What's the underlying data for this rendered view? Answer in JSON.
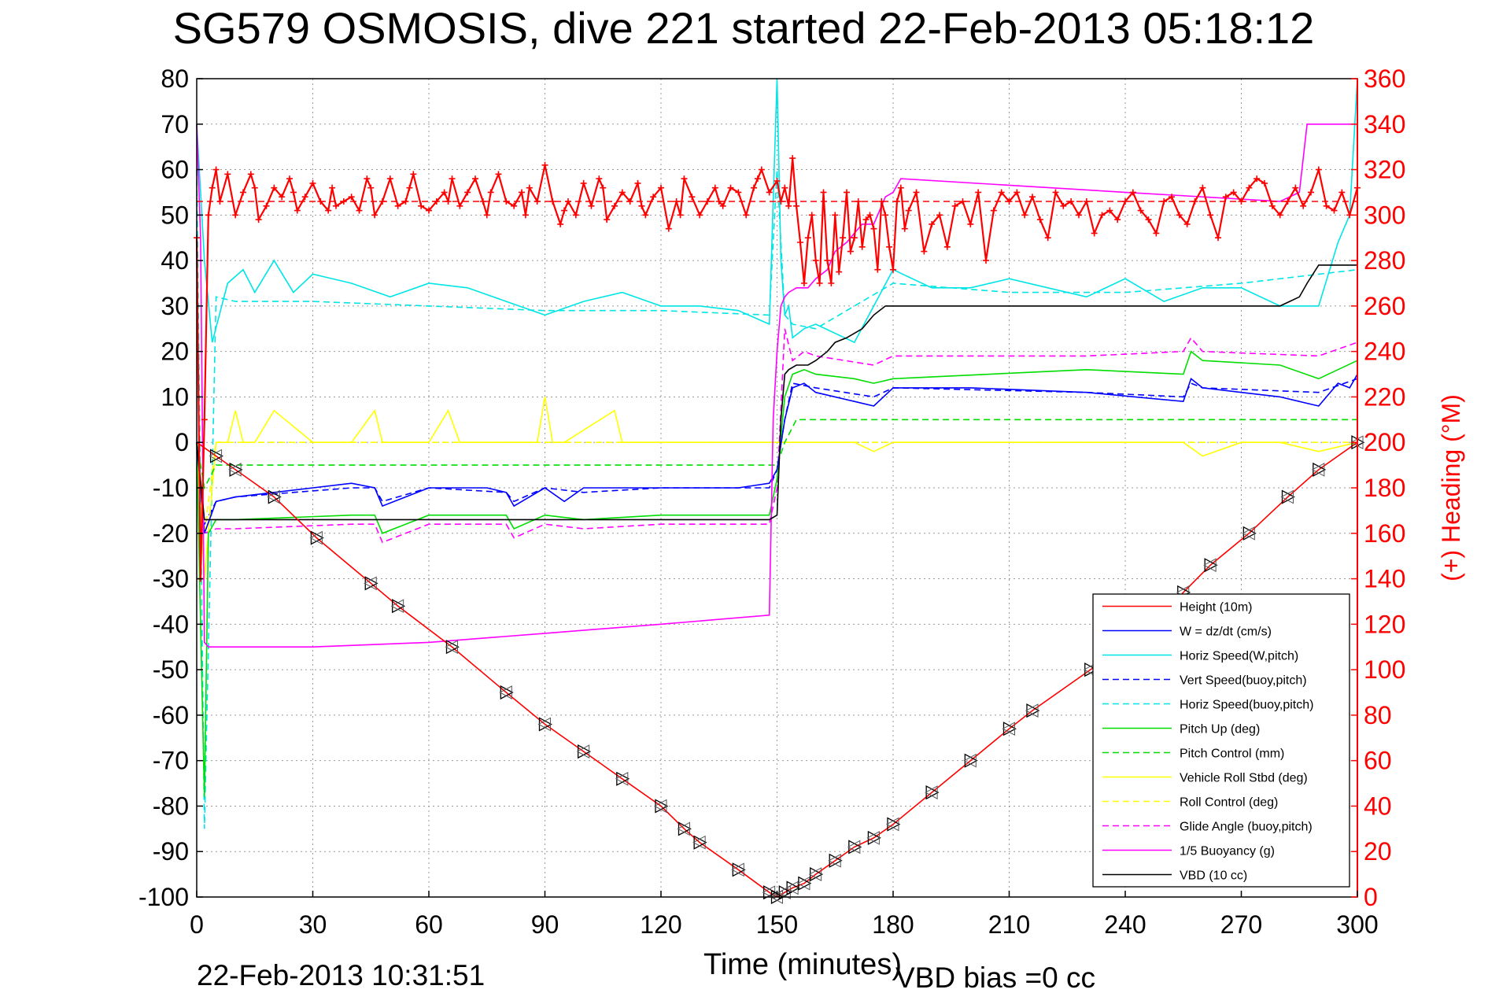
{
  "chart_data": {
    "type": "line",
    "title": "SG579 OSMOSIS, dive 221 started 22-Feb-2013 05:18:12",
    "xlabel": "Time (minutes)",
    "ylabel": "",
    "ylabel_right": "(+) Heading (°M)",
    "xlim": [
      0,
      300
    ],
    "ylim": [
      -100,
      80
    ],
    "ylim_right": [
      0,
      360
    ],
    "xticks": [
      "0",
      "30",
      "60",
      "90",
      "120",
      "150",
      "180",
      "210",
      "240",
      "270",
      "300"
    ],
    "yticks": [
      "80",
      "70",
      "60",
      "50",
      "40",
      "30",
      "20",
      "10",
      "0",
      "-10",
      "-20",
      "-30",
      "-40",
      "-50",
      "-60",
      "-70",
      "-80",
      "-90",
      "-100"
    ],
    "yticks_right": [
      "360",
      "340",
      "320",
      "300",
      "280",
      "260",
      "240",
      "220",
      "200",
      "180",
      "160",
      "140",
      "120",
      "100",
      "80",
      "60",
      "40",
      "20",
      "0"
    ],
    "grid": true,
    "legend_position": "bottom-right",
    "footer_left": "22-Feb-2013 10:31:51",
    "footer_right": "VBD bias =0 cc",
    "series": [
      {
        "name": "Height (10m)",
        "color": "#ff0000",
        "style": "solid",
        "x": [
          0,
          5,
          10,
          20,
          31,
          45,
          52,
          66,
          80,
          90,
          100,
          110,
          120,
          126,
          130,
          140,
          148,
          150,
          152,
          154,
          157,
          160,
          165,
          170,
          175,
          180,
          190,
          200,
          210,
          216,
          231,
          246,
          255,
          262,
          272,
          282,
          290,
          300
        ],
        "y": [
          0,
          -3,
          -6,
          -12,
          -21,
          -31,
          -36,
          -45,
          -55,
          -62,
          -68,
          -74,
          -80,
          -85,
          -88,
          -94,
          -99,
          -100,
          -99,
          -98,
          -97,
          -95,
          -92,
          -89,
          -87,
          -84,
          -77,
          -70,
          -63,
          -59,
          -50,
          -41,
          -33,
          -27,
          -20,
          -12,
          -6,
          0
        ]
      },
      {
        "name": "W = dz/dt (cm/s)",
        "color": "#0000ff",
        "style": "solid",
        "x": [
          0,
          2,
          5,
          10,
          20,
          30,
          40,
          46,
          48,
          60,
          75,
          80,
          82,
          90,
          95,
          100,
          110,
          120,
          130,
          140,
          148,
          150,
          152,
          154,
          157,
          160,
          170,
          175,
          180,
          200,
          230,
          255,
          257,
          260,
          270,
          280,
          290,
          295,
          298,
          300
        ],
        "y": [
          0,
          -20,
          -13,
          -12,
          -11,
          -10,
          -9,
          -10,
          -14,
          -10,
          -10,
          -11,
          -14,
          -10,
          -13,
          -10,
          -10,
          -10,
          -10,
          -10,
          -9,
          -6,
          5,
          12,
          13,
          11,
          9,
          8,
          12,
          12,
          11,
          9,
          14,
          12,
          11,
          10,
          8,
          13,
          12,
          15
        ]
      },
      {
        "name": "Horiz Speed(W,pitch)",
        "color": "#00e5e5",
        "style": "solid",
        "x": [
          0,
          2,
          4,
          8,
          12,
          15,
          20,
          25,
          30,
          40,
          50,
          60,
          70,
          80,
          90,
          100,
          110,
          120,
          130,
          140,
          148,
          150,
          151,
          152,
          153,
          154,
          157,
          160,
          170,
          180,
          190,
          200,
          210,
          220,
          230,
          240,
          250,
          260,
          270,
          280,
          290,
          295,
          298,
          300
        ],
        "y": [
          70,
          40,
          22,
          35,
          38,
          33,
          40,
          33,
          37,
          35,
          32,
          35,
          34,
          31,
          28,
          31,
          33,
          30,
          30,
          29,
          26,
          80,
          40,
          28,
          30,
          23,
          25,
          26,
          22,
          38,
          34,
          34,
          36,
          34,
          32,
          36,
          31,
          34,
          34,
          30,
          30,
          44,
          50,
          80
        ]
      },
      {
        "name": "Vert Speed(buoy,pitch)",
        "color": "#0000ff",
        "style": "dashed",
        "x": [
          0,
          2,
          5,
          10,
          40,
          46,
          48,
          60,
          80,
          82,
          90,
          100,
          120,
          148,
          150,
          152,
          154,
          160,
          175,
          180,
          230,
          255,
          257,
          260,
          290,
          300
        ],
        "y": [
          0,
          -18,
          -13,
          -12,
          -10,
          -10,
          -13,
          -10,
          -11,
          -13,
          -10,
          -11,
          -10,
          -10,
          -6,
          5,
          13,
          12,
          10,
          12,
          11,
          10,
          13,
          12,
          11,
          14
        ]
      },
      {
        "name": "Horiz Speed(buoy,pitch)",
        "color": "#00e5e5",
        "style": "dashed",
        "x": [
          0,
          2,
          5,
          10,
          30,
          60,
          90,
          120,
          148,
          150,
          152,
          154,
          160,
          180,
          210,
          240,
          270,
          300
        ],
        "y": [
          60,
          -85,
          32,
          31,
          31,
          30,
          29,
          29,
          28,
          60,
          28,
          26,
          25,
          35,
          33,
          33,
          35,
          38
        ]
      },
      {
        "name": "Pitch Up (deg)",
        "color": "#00dd00",
        "style": "solid",
        "x": [
          0,
          1,
          2,
          3,
          5,
          10,
          40,
          46,
          48,
          60,
          80,
          82,
          90,
          100,
          120,
          148,
          150,
          152,
          154,
          157,
          160,
          170,
          175,
          180,
          230,
          255,
          257,
          260,
          280,
          290,
          300
        ],
        "y": [
          0,
          -40,
          -78,
          -20,
          -17,
          -17,
          -16,
          -16,
          -20,
          -16,
          -16,
          -19,
          -16,
          -17,
          -16,
          -16,
          -8,
          10,
          15,
          16,
          15,
          14,
          13,
          14,
          16,
          15,
          20,
          18,
          17,
          14,
          18
        ]
      },
      {
        "name": "Pitch Control (mm)",
        "color": "#00dd00",
        "style": "dashed",
        "x": [
          0,
          2,
          5,
          10,
          150,
          152,
          155,
          300
        ],
        "y": [
          0,
          -10,
          -5,
          -5,
          -5,
          0,
          5,
          5
        ]
      },
      {
        "name": "Vehicle Roll Stbd (deg)",
        "color": "#ffff00",
        "style": "solid",
        "x": [
          0,
          2,
          5,
          8,
          10,
          12,
          15,
          20,
          30,
          40,
          46,
          48,
          60,
          65,
          68,
          70,
          75,
          88,
          90,
          92,
          95,
          108,
          110,
          112,
          115,
          130,
          148,
          150,
          152,
          155,
          160,
          170,
          175,
          180,
          190,
          200,
          210,
          220,
          240,
          255,
          260,
          270,
          280,
          290,
          300
        ],
        "y": [
          0,
          -30,
          0,
          0,
          7,
          0,
          0,
          7,
          0,
          0,
          7,
          0,
          0,
          7,
          0,
          0,
          0,
          0,
          10,
          0,
          0,
          7,
          0,
          0,
          0,
          0,
          0,
          0,
          0,
          0,
          0,
          0,
          -2,
          0,
          0,
          0,
          0,
          0,
          0,
          0,
          -3,
          0,
          0,
          -2,
          0
        ]
      },
      {
        "name": "Roll Control (deg)",
        "color": "#ffff00",
        "style": "dashed",
        "x": [
          0,
          2,
          5,
          10,
          150,
          155,
          300
        ],
        "y": [
          0,
          -20,
          0,
          0,
          0,
          0,
          0
        ]
      },
      {
        "name": "Glide Angle (buoy,pitch)",
        "color": "#ff00ff",
        "style": "dashed",
        "x": [
          0,
          2,
          5,
          10,
          40,
          46,
          48,
          60,
          80,
          82,
          90,
          100,
          120,
          148,
          150,
          152,
          154,
          157,
          160,
          175,
          180,
          230,
          255,
          257,
          260,
          290,
          300
        ],
        "y": [
          0,
          -20,
          -19,
          -19,
          -18,
          -18,
          -22,
          -18,
          -18,
          -21,
          -18,
          -19,
          -18,
          -18,
          -10,
          25,
          18,
          20,
          19,
          17,
          19,
          19,
          20,
          23,
          20,
          19,
          22
        ]
      },
      {
        "name": "1/5 Buoyancy (g)",
        "color": "#ff00ff",
        "style": "solid",
        "x": [
          0,
          1,
          2,
          3,
          30,
          60,
          90,
          120,
          148,
          149,
          150,
          151,
          152,
          153,
          155,
          158,
          160,
          163,
          165,
          168,
          170,
          172,
          175,
          178,
          180,
          182,
          240,
          280,
          285,
          287,
          300
        ],
        "y": [
          70,
          45,
          -44,
          -45,
          -45,
          -44,
          -42,
          -40,
          -38,
          5,
          20,
          30,
          32,
          33,
          34,
          34,
          36,
          38,
          42,
          44,
          46,
          48,
          48,
          54,
          55,
          58,
          55,
          53,
          55,
          70,
          70
        ]
      },
      {
        "name": "VBD (10 cc)",
        "color": "#000000",
        "style": "solid",
        "x": [
          0,
          2,
          5,
          10,
          100,
          148,
          150,
          151,
          152,
          153,
          155,
          158,
          160,
          163,
          165,
          168,
          170,
          172,
          175,
          178,
          180,
          182,
          280,
          285,
          287,
          290,
          300
        ],
        "y": [
          0,
          -17,
          -17,
          -17,
          -17,
          -17,
          -16,
          5,
          15,
          16,
          17,
          17,
          18,
          20,
          22,
          23,
          24,
          25,
          28,
          30,
          30,
          30,
          30,
          32,
          35,
          39,
          39
        ]
      }
    ],
    "heading": {
      "name": "Heading (°M)",
      "color": "#ff0000",
      "axis": "right",
      "desired": 306,
      "x": [
        0,
        1,
        2,
        3,
        4,
        5,
        6,
        8,
        10,
        12,
        14,
        15,
        16,
        18,
        20,
        22,
        24,
        25,
        26,
        28,
        30,
        32,
        34,
        35,
        36,
        38,
        40,
        42,
        44,
        45,
        46,
        48,
        50,
        52,
        54,
        55,
        56,
        58,
        60,
        62,
        64,
        65,
        66,
        68,
        70,
        72,
        74,
        75,
        76,
        78,
        80,
        82,
        84,
        85,
        86,
        88,
        90,
        92,
        94,
        95,
        96,
        98,
        100,
        102,
        104,
        105,
        106,
        108,
        110,
        112,
        114,
        115,
        116,
        118,
        120,
        122,
        124,
        125,
        126,
        128,
        130,
        132,
        134,
        135,
        136,
        138,
        140,
        142,
        144,
        145,
        146,
        148,
        150,
        151,
        152,
        153,
        154,
        155,
        156,
        157,
        158,
        159,
        160,
        161,
        162,
        163,
        164,
        165,
        166,
        167,
        168,
        169,
        170,
        171,
        172,
        173,
        174,
        175,
        176,
        177,
        178,
        179,
        180,
        181,
        182,
        183,
        184,
        186,
        188,
        190,
        192,
        194,
        196,
        198,
        200,
        202,
        204,
        206,
        208,
        210,
        212,
        214,
        216,
        218,
        220,
        222,
        224,
        226,
        228,
        230,
        232,
        234,
        236,
        238,
        240,
        242,
        244,
        246,
        248,
        250,
        252,
        254,
        256,
        258,
        260,
        262,
        264,
        266,
        268,
        270,
        272,
        274,
        276,
        278,
        280,
        282,
        284,
        286,
        288,
        290,
        292,
        294,
        296,
        298,
        300
      ],
      "y": [
        290,
        140,
        210,
        300,
        312,
        320,
        306,
        318,
        300,
        310,
        318,
        312,
        298,
        304,
        312,
        308,
        316,
        310,
        302,
        308,
        314,
        306,
        302,
        312,
        304,
        306,
        308,
        302,
        316,
        312,
        300,
        306,
        316,
        304,
        306,
        312,
        318,
        304,
        302,
        306,
        310,
        306,
        316,
        304,
        310,
        316,
        306,
        300,
        310,
        318,
        306,
        304,
        310,
        300,
        312,
        306,
        322,
        306,
        296,
        302,
        306,
        300,
        314,
        304,
        316,
        312,
        298,
        304,
        310,
        306,
        314,
        304,
        300,
        308,
        312,
        294,
        306,
        300,
        316,
        308,
        300,
        306,
        312,
        306,
        304,
        312,
        310,
        300,
        312,
        316,
        320,
        310,
        315,
        306,
        312,
        304,
        325,
        304,
        288,
        270,
        290,
        300,
        280,
        270,
        310,
        280,
        270,
        300,
        275,
        290,
        310,
        284,
        290,
        306,
        286,
        298,
        300,
        294,
        276,
        306,
        300,
        286,
        276,
        306,
        312,
        294,
        302,
        310,
        284,
        296,
        300,
        286,
        304,
        306,
        296,
        310,
        280,
        302,
        310,
        306,
        310,
        300,
        308,
        298,
        290,
        310,
        304,
        306,
        300,
        306,
        292,
        300,
        302,
        298,
        306,
        310,
        302,
        298,
        292,
        306,
        308,
        300,
        296,
        306,
        312,
        300,
        290,
        308,
        310,
        306,
        312,
        316,
        314,
        304,
        300,
        306,
        312,
        304,
        310,
        320,
        304,
        302,
        310,
        300,
        312
      ]
    }
  }
}
